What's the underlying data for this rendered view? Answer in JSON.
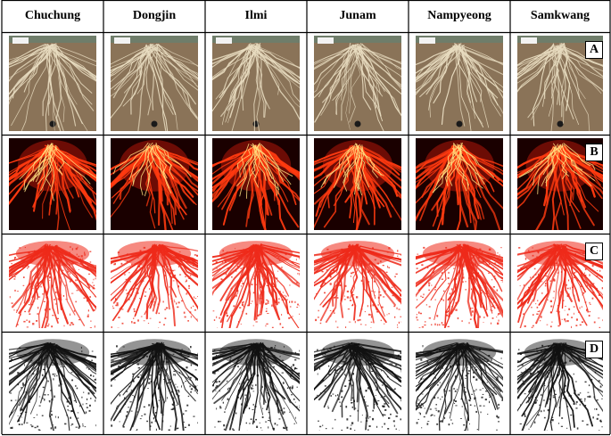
{
  "columns": [
    {
      "name": "Chuchung"
    },
    {
      "name": "Dongjin"
    },
    {
      "name": "Ilmi"
    },
    {
      "name": "Junam"
    },
    {
      "name": "Nampyeong"
    },
    {
      "name": "Samkwang"
    }
  ],
  "rows": [
    {
      "label": "A",
      "style": "photo"
    },
    {
      "label": "B",
      "style": "thermal"
    },
    {
      "label": "C",
      "style": "red-binary"
    },
    {
      "label": "D",
      "style": "black-binary"
    }
  ],
  "colors": {
    "photo_background": "#8a7358",
    "photo_root": "#e8dcc0",
    "thermal_background": "#1a0000",
    "thermal_root": "#ff3a10",
    "thermal_core": "#ffe080",
    "red_binary_root": "#ee2a1a",
    "black_binary_root": "#111111"
  }
}
